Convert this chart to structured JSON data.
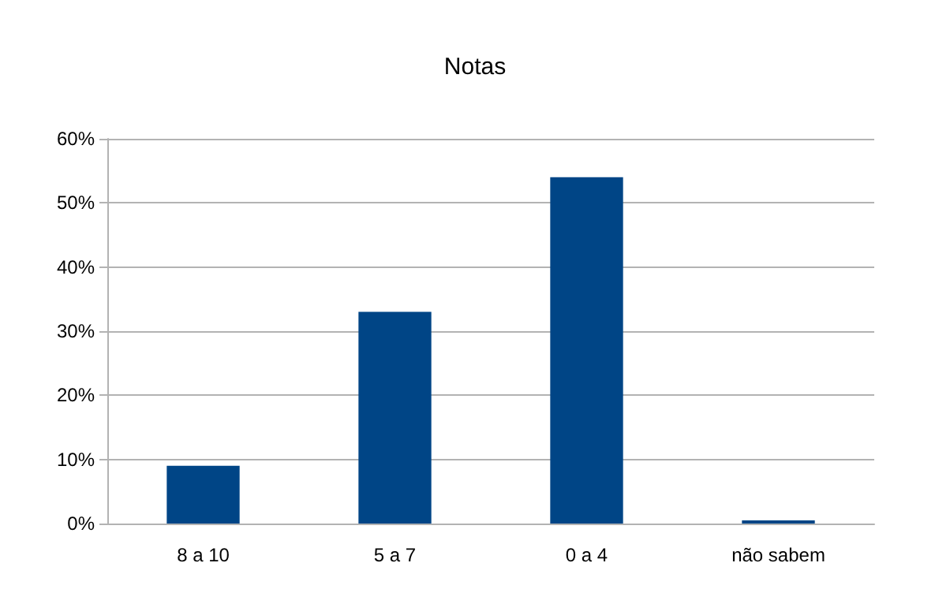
{
  "chart_data": {
    "type": "bar",
    "title": "Notas",
    "categories": [
      "8 a 10",
      "5 a 7",
      "0 a 4",
      "não sabem"
    ],
    "values": [
      9,
      33,
      54,
      0.5
    ],
    "color": "#004586",
    "ylim": [
      0,
      60
    ],
    "yticks": [
      {
        "value": 0,
        "label": "0%"
      },
      {
        "value": 10,
        "label": "10%"
      },
      {
        "value": 20,
        "label": "20%"
      },
      {
        "value": 30,
        "label": "30%"
      },
      {
        "value": 40,
        "label": "40%"
      },
      {
        "value": 50,
        "label": "50%"
      },
      {
        "value": 60,
        "label": "60%"
      }
    ],
    "grid": "y"
  }
}
